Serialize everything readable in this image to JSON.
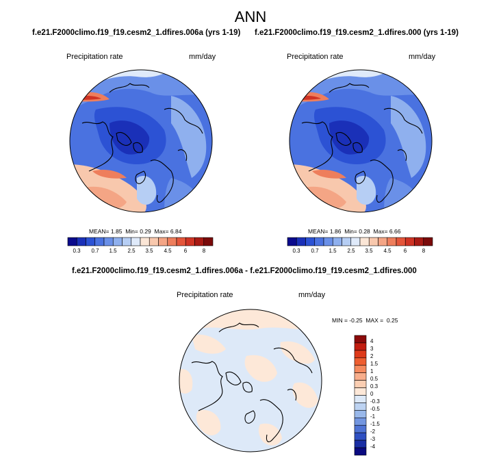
{
  "title": "ANN",
  "panels": [
    {
      "run_title": "f.e21.F2000climo.f19_f19.cesm2_1.dfires.006a (yrs 1-19)",
      "field": "Precipitation rate",
      "units": "mm/day",
      "stats": {
        "mean_label": "MEAN=",
        "mean": "1.85",
        "min_label": "Min=",
        "min": "0.29",
        "max_label": "Max=",
        "max": "6.84"
      }
    },
    {
      "run_title": "f.e21.F2000climo.f19_f19.cesm2_1.dfires.000 (yrs 1-19)",
      "field": "Precipitation rate",
      "units": "mm/day",
      "stats": {
        "mean_label": "MEAN=",
        "mean": "1.86",
        "min_label": "Min=",
        "min": "0.28",
        "max_label": "Max=",
        "max": "6.66"
      }
    }
  ],
  "horizontal_colorbar": {
    "colors": [
      "#0a0a8c",
      "#1a30b8",
      "#2c52d4",
      "#4a72e0",
      "#6a90e8",
      "#8fb0ee",
      "#b6ceF4",
      "#dfeafa",
      "#fbe6d6",
      "#f8c8ad",
      "#f4a585",
      "#ee7e5c",
      "#e4553a",
      "#cf3324",
      "#a81a14",
      "#7a0a0a"
    ],
    "ticks": [
      "0.3",
      "0.7",
      "1.5",
      "2.5",
      "3.5",
      "4.5",
      "6",
      "8"
    ]
  },
  "diff_panel": {
    "run_title": "f.e21.F2000climo.f19_f19.cesm2_1.dfires.006a - f.e21.F2000climo.f19_f19.cesm2_1.dfires.000",
    "field": "Precipitation rate",
    "units": "mm/day",
    "stats": {
      "min_label": "MIN =",
      "min": "-0.25",
      "max_label": "MAX =",
      "max": "0.25"
    }
  },
  "vertical_colorbar": {
    "colors": [
      "#8b0a0a",
      "#c21d10",
      "#de3a1a",
      "#ee5e30",
      "#f58a5e",
      "#f8ae8c",
      "#fbceb2",
      "#fde8d8",
      "#dde9f8",
      "#bdd3f2",
      "#99b8ea",
      "#7396e0",
      "#4f73d4",
      "#2f50c2",
      "#1a2fa4",
      "#0a0a80"
    ],
    "ticks": [
      "4",
      "3",
      "2",
      "1.5",
      "1",
      "0.5",
      "0.3",
      "0",
      "-0.3",
      "-0.5",
      "-1",
      "-1.5",
      "-2",
      "-3",
      "-4"
    ]
  }
}
